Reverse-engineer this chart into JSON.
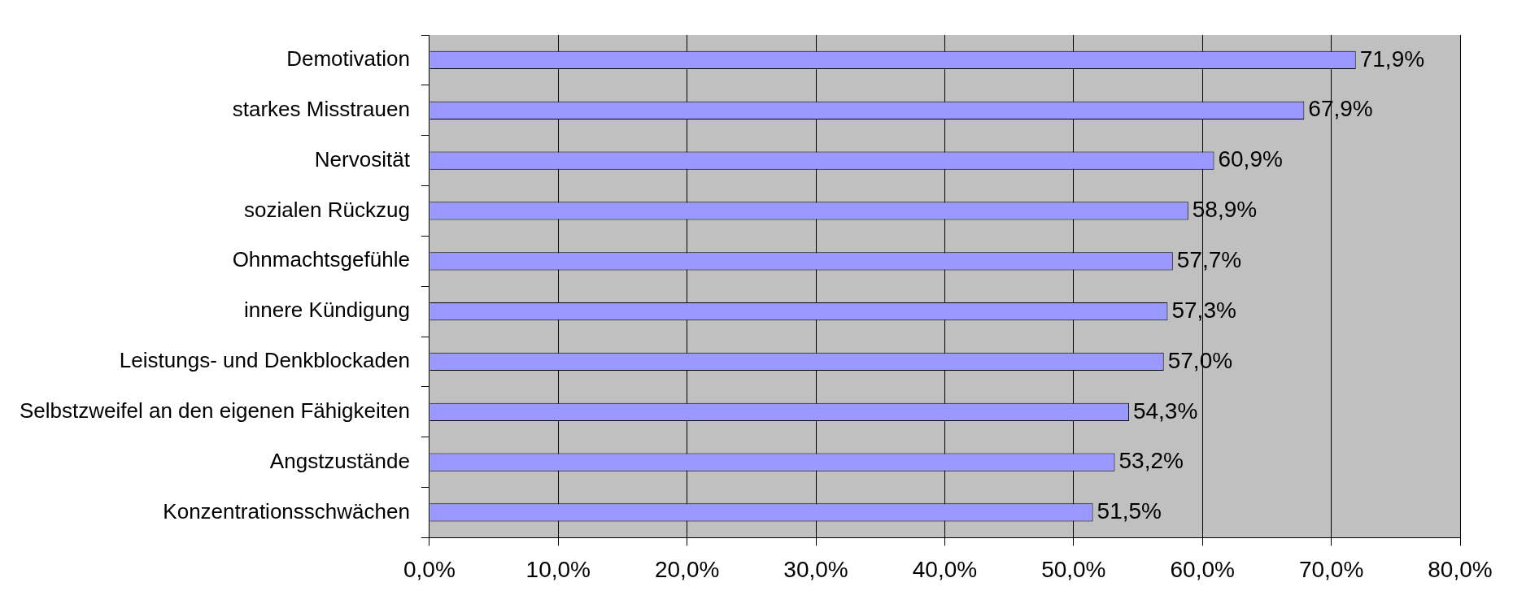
{
  "chart_data": {
    "type": "bar",
    "orientation": "horizontal",
    "categories": [
      "Demotivation",
      "starkes Misstrauen",
      "Nervosität",
      "sozialen Rückzug",
      "Ohnmachtsgefühle",
      "innere Kündigung",
      "Leistungs- und Denkblockaden",
      "Selbstzweifel an den eigenen Fähigkeiten",
      "Angstzustände",
      "Konzentrationsschwächen"
    ],
    "values": [
      71.9,
      67.9,
      60.9,
      58.9,
      57.7,
      57.3,
      57.0,
      54.3,
      53.2,
      51.5
    ],
    "value_labels": [
      "71,9%",
      "67,9%",
      "60,9%",
      "58,9%",
      "57,7%",
      "57,3%",
      "57,0%",
      "54,3%",
      "53,2%",
      "51,5%"
    ],
    "color": "#9999ff",
    "xlim": [
      0,
      80
    ],
    "xticks": [
      {
        "value": 0,
        "label": "0,0%"
      },
      {
        "value": 10,
        "label": "10,0%"
      },
      {
        "value": 20,
        "label": "20,0%"
      },
      {
        "value": 30,
        "label": "30,0%"
      },
      {
        "value": 40,
        "label": "40,0%"
      },
      {
        "value": 50,
        "label": "50,0%"
      },
      {
        "value": 60,
        "label": "60,0%"
      },
      {
        "value": 70,
        "label": "70,0%"
      },
      {
        "value": 80,
        "label": "80,0%"
      }
    ],
    "grid": "x",
    "legend": false
  }
}
